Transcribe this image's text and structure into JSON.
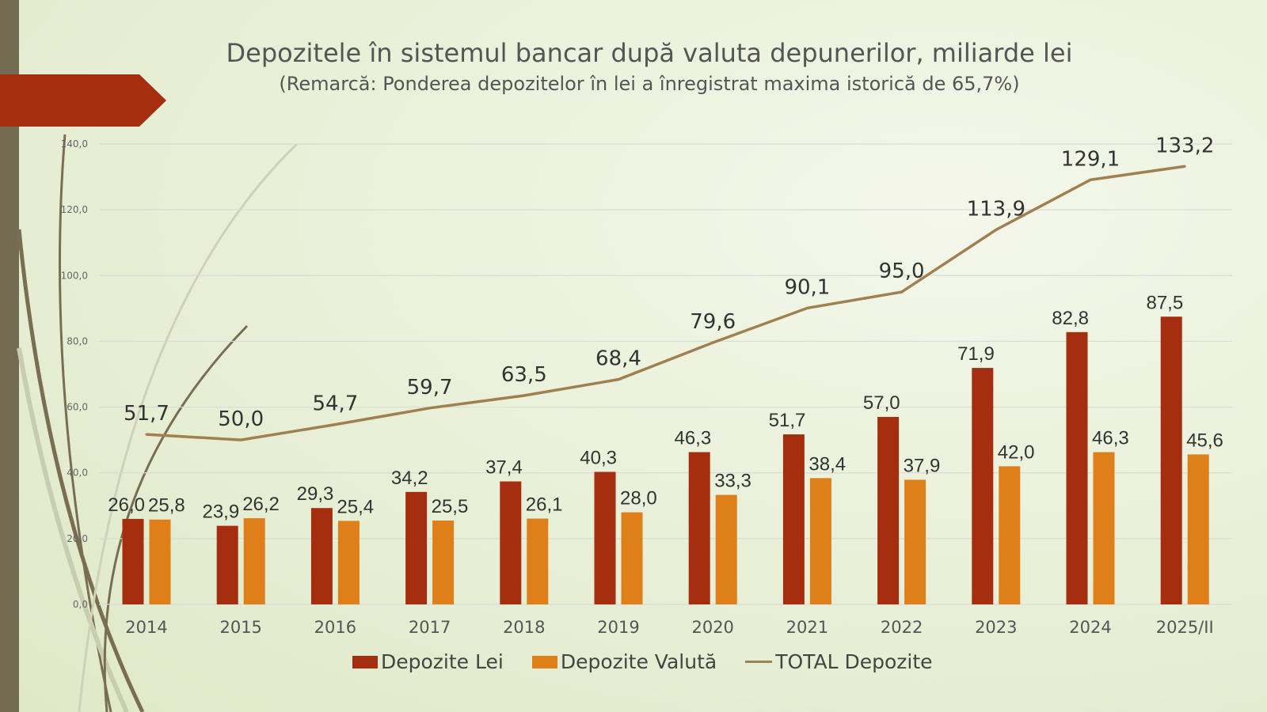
{
  "chart_data": {
    "type": "bar",
    "title": "Depozitele în sistemul bancar după valuta depunerilor, miliarde lei",
    "subtitle": "(Remarcă: Ponderea depozitelor în lei a înregistrat maxima istorică de 65,7%)",
    "categories": [
      "2014",
      "2015",
      "2016",
      "2017",
      "2018",
      "2019",
      "2020",
      "2021",
      "2022",
      "2023",
      "2024",
      "2025/II"
    ],
    "ylim": [
      0,
      140
    ],
    "yticks": [
      "0,0",
      "20,0",
      "40,0",
      "60,0",
      "80,0",
      "100,0",
      "120,0",
      "140,0"
    ],
    "grid": true,
    "legend_position": "bottom",
    "series": [
      {
        "name": "Depozite Lei",
        "type": "bar",
        "color": "#a52d10",
        "values": [
          26.0,
          23.9,
          29.3,
          34.2,
          37.4,
          40.3,
          46.3,
          51.7,
          57.0,
          71.9,
          82.8,
          87.5
        ]
      },
      {
        "name": "Depozite Valută",
        "type": "bar",
        "color": "#df7f19",
        "values": [
          25.8,
          26.2,
          25.4,
          25.5,
          26.1,
          28.0,
          33.3,
          38.4,
          37.9,
          42.0,
          46.3,
          45.6
        ]
      },
      {
        "name": "TOTAL Depozite",
        "type": "line",
        "color": "#a08050",
        "values": [
          51.7,
          50.0,
          54.7,
          59.7,
          63.5,
          68.4,
          79.6,
          90.1,
          95.0,
          113.9,
          129.1,
          133.2
        ]
      }
    ]
  }
}
